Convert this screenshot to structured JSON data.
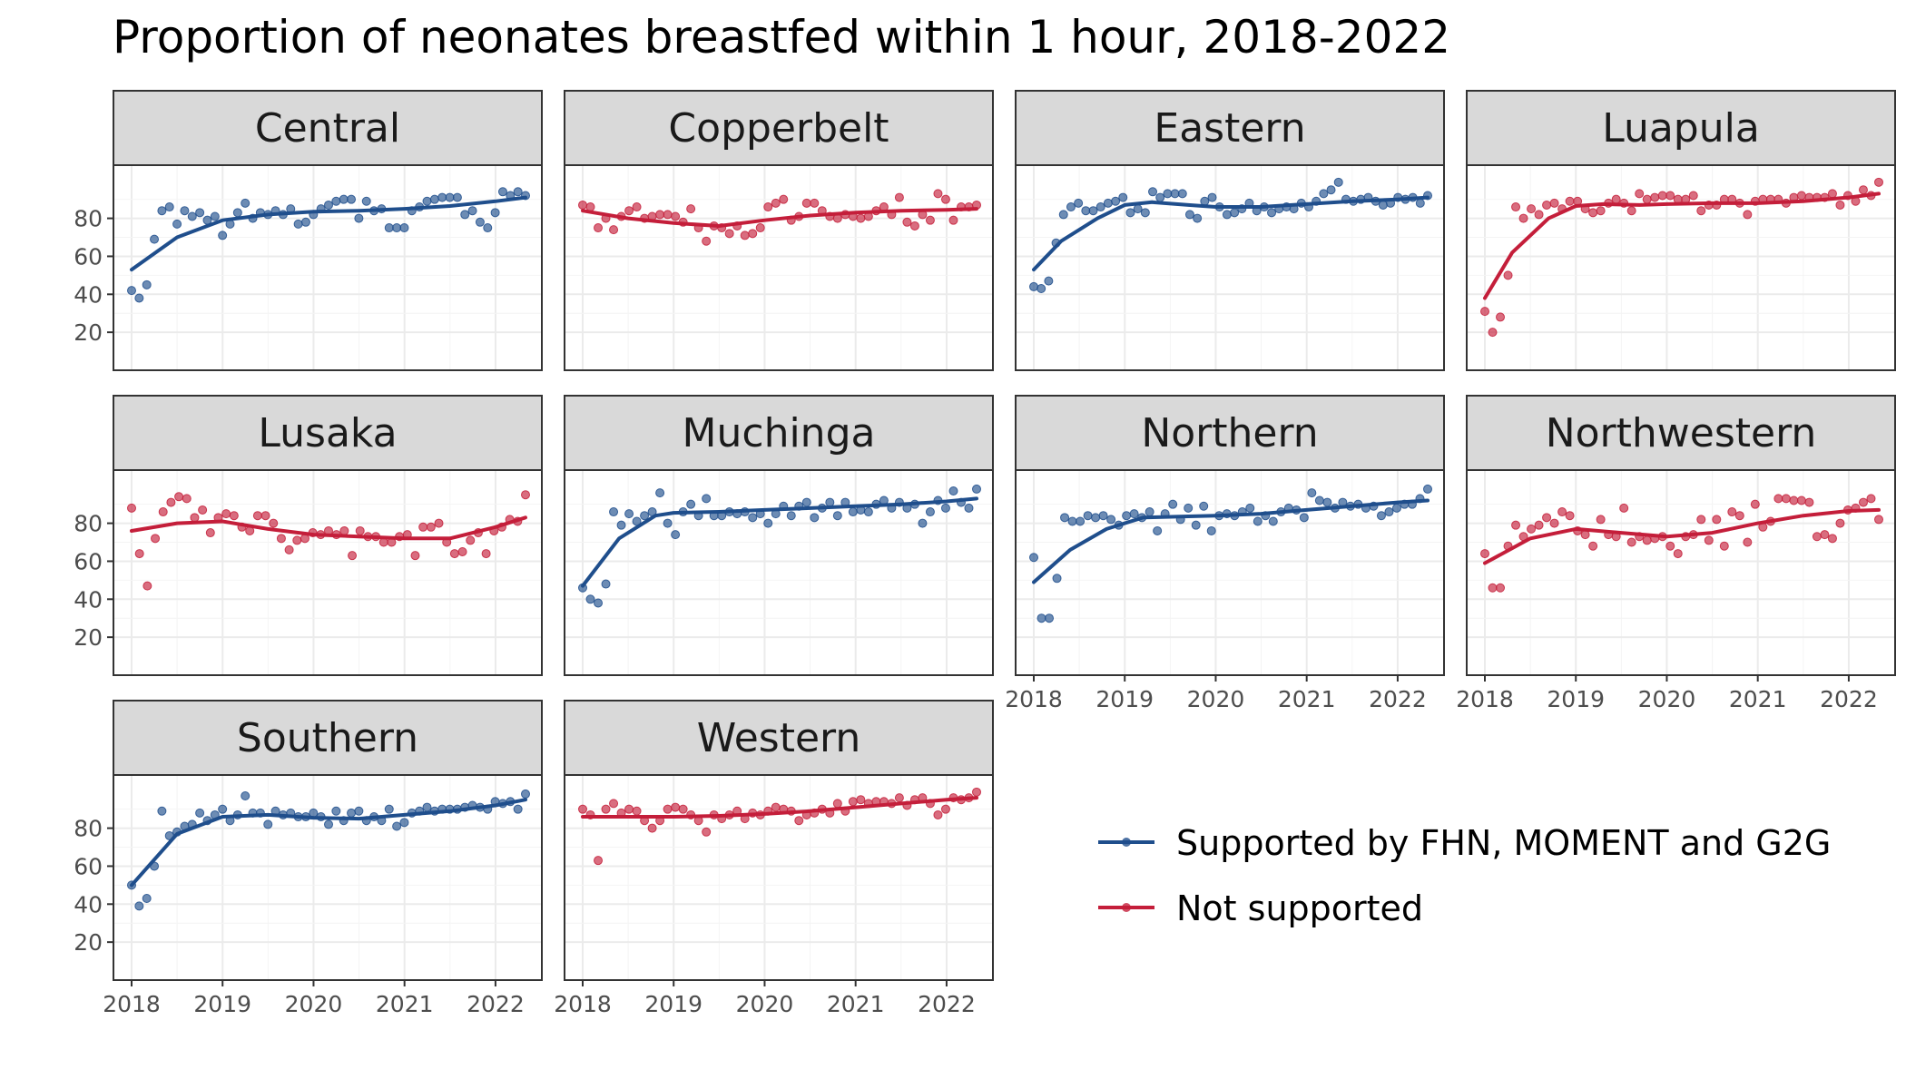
{
  "chart_data": {
    "type": "scatter",
    "title": "Proportion of neonates breastfed within 1 hour, 2018-2022",
    "x_ticks": [
      "2018",
      "2019",
      "2020",
      "2021",
      "2022"
    ],
    "x_range": [
      2018.0,
      2022.33
    ],
    "y_ticks": [
      "20",
      "40",
      "60",
      "80"
    ],
    "y_range": [
      0,
      108
    ],
    "colors": {
      "supported": "#1f4e8c",
      "not_supported": "#c41e3a"
    },
    "legend": {
      "position": "right",
      "items": [
        {
          "key": "supported",
          "label": "Supported by FHN, MOMENT and G2G"
        },
        {
          "key": "not_supported",
          "label": "Not supported"
        }
      ]
    },
    "panels": [
      {
        "name": "Central",
        "group": "supported",
        "points": [
          42,
          38,
          45,
          69,
          84,
          86,
          77,
          84,
          81,
          83,
          79,
          81,
          71,
          77,
          83,
          88,
          80,
          83,
          82,
          84,
          82,
          85,
          77,
          78,
          82,
          85,
          87,
          89,
          90,
          90,
          80,
          89,
          84,
          85,
          75,
          75,
          75,
          84,
          86,
          89,
          90,
          91,
          91,
          91,
          82,
          84,
          78,
          75,
          83,
          94,
          92,
          94,
          92
        ],
        "trend": [
          [
            2018,
            53
          ],
          [
            2018.5,
            70
          ],
          [
            2019,
            79
          ],
          [
            2019.5,
            82
          ],
          [
            2020,
            83.5
          ],
          [
            2020.5,
            84
          ],
          [
            2021,
            85
          ],
          [
            2021.5,
            86.5
          ],
          [
            2022,
            89
          ],
          [
            2022.33,
            91
          ]
        ]
      },
      {
        "name": "Copperbelt",
        "group": "not_supported",
        "points": [
          87,
          86,
          75,
          80,
          74,
          81,
          84,
          86,
          80,
          81,
          82,
          82,
          81,
          78,
          85,
          75,
          68,
          76,
          75,
          72,
          76,
          71,
          72,
          75,
          86,
          88,
          90,
          79,
          81,
          88,
          88,
          84,
          81,
          80,
          82,
          81,
          80,
          81,
          84,
          86,
          82,
          91,
          78,
          76,
          82,
          79,
          93,
          90,
          79,
          86,
          86,
          87
        ],
        "trend": [
          [
            2018,
            84
          ],
          [
            2018.5,
            80
          ],
          [
            2019,
            77.5
          ],
          [
            2019.5,
            76
          ],
          [
            2020,
            79
          ],
          [
            2020.5,
            81.5
          ],
          [
            2021,
            83
          ],
          [
            2021.5,
            84
          ],
          [
            2022,
            84.5
          ],
          [
            2022.33,
            85
          ]
        ]
      },
      {
        "name": "Eastern",
        "group": "supported",
        "points": [
          44,
          43,
          47,
          67,
          82,
          86,
          88,
          84,
          84,
          86,
          88,
          89,
          91,
          83,
          85,
          83,
          94,
          91,
          93,
          93,
          93,
          82,
          80,
          89,
          91,
          86,
          82,
          83,
          85,
          88,
          84,
          86,
          83,
          85,
          86,
          85,
          88,
          86,
          89,
          93,
          95,
          99,
          90,
          89,
          90,
          91,
          89,
          87,
          88,
          91,
          90,
          91,
          88,
          92
        ],
        "trend": [
          [
            2018,
            53
          ],
          [
            2018.3,
            68
          ],
          [
            2018.7,
            80
          ],
          [
            2019,
            87
          ],
          [
            2019.3,
            88.5
          ],
          [
            2019.7,
            87
          ],
          [
            2020,
            86
          ],
          [
            2020.5,
            86
          ],
          [
            2021,
            87.5
          ],
          [
            2021.5,
            89
          ],
          [
            2022,
            90
          ],
          [
            2022.33,
            91
          ]
        ]
      },
      {
        "name": "Luapula",
        "group": "not_supported",
        "points": [
          31,
          20,
          28,
          50,
          86,
          80,
          85,
          82,
          87,
          88,
          85,
          89,
          89,
          85,
          83,
          84,
          88,
          90,
          88,
          84,
          93,
          90,
          91,
          92,
          92,
          90,
          90,
          92,
          84,
          87,
          87,
          90,
          90,
          88,
          82,
          89,
          90,
          90,
          90,
          88,
          91,
          92,
          91,
          91,
          91,
          93,
          87,
          92,
          89,
          95,
          92,
          99
        ],
        "trend": [
          [
            2018,
            38
          ],
          [
            2018.3,
            62
          ],
          [
            2018.7,
            80
          ],
          [
            2019,
            86.5
          ],
          [
            2019.3,
            87.5
          ],
          [
            2019.7,
            87
          ],
          [
            2020,
            87.5
          ],
          [
            2020.5,
            88
          ],
          [
            2021,
            88
          ],
          [
            2021.5,
            89
          ],
          [
            2022,
            91
          ],
          [
            2022.33,
            93
          ]
        ]
      },
      {
        "name": "Lusaka",
        "group": "not_supported",
        "points": [
          88,
          64,
          47,
          72,
          86,
          91,
          94,
          93,
          83,
          87,
          75,
          83,
          85,
          84,
          78,
          76,
          84,
          84,
          80,
          72,
          66,
          71,
          72,
          75,
          74,
          76,
          74,
          76,
          63,
          76,
          73,
          73,
          70,
          70,
          73,
          74,
          63,
          78,
          78,
          80,
          70,
          64,
          65,
          71,
          75,
          64,
          76,
          78,
          82,
          81,
          95
        ],
        "trend": [
          [
            2018,
            76
          ],
          [
            2018.5,
            80
          ],
          [
            2019,
            81
          ],
          [
            2019.5,
            77
          ],
          [
            2020,
            74
          ],
          [
            2020.5,
            73
          ],
          [
            2021,
            72
          ],
          [
            2021.5,
            72
          ],
          [
            2022,
            78
          ],
          [
            2022.33,
            83
          ]
        ]
      },
      {
        "name": "Muchinga",
        "group": "supported",
        "points": [
          46,
          40,
          38,
          48,
          86,
          79,
          85,
          81,
          84,
          86,
          96,
          80,
          74,
          86,
          90,
          84,
          93,
          84,
          84,
          86,
          85,
          86,
          83,
          85,
          80,
          85,
          89,
          84,
          89,
          91,
          83,
          88,
          91,
          84,
          91,
          86,
          87,
          86,
          90,
          92,
          88,
          91,
          88,
          90,
          80,
          86,
          92,
          88,
          97,
          91,
          88,
          98
        ],
        "trend": [
          [
            2018,
            47
          ],
          [
            2018.4,
            72
          ],
          [
            2018.8,
            84
          ],
          [
            2019,
            85.5
          ],
          [
            2019.5,
            86
          ],
          [
            2020,
            87
          ],
          [
            2020.5,
            88
          ],
          [
            2021,
            89
          ],
          [
            2021.5,
            90
          ],
          [
            2022,
            91.5
          ],
          [
            2022.33,
            93
          ]
        ]
      },
      {
        "name": "Northern",
        "group": "supported",
        "points": [
          62,
          30,
          30,
          51,
          83,
          81,
          81,
          84,
          83,
          84,
          82,
          79,
          84,
          85,
          83,
          86,
          76,
          85,
          90,
          82,
          88,
          79,
          89,
          76,
          84,
          85,
          84,
          86,
          88,
          81,
          84,
          81,
          86,
          88,
          87,
          83,
          96,
          92,
          91,
          88,
          91,
          89,
          90,
          88,
          89,
          84,
          86,
          88,
          90,
          90,
          93,
          98
        ],
        "trend": [
          [
            2018,
            49
          ],
          [
            2018.4,
            66
          ],
          [
            2018.8,
            77
          ],
          [
            2019.2,
            83
          ],
          [
            2019.6,
            83.5
          ],
          [
            2020,
            84
          ],
          [
            2020.5,
            85
          ],
          [
            2021,
            87
          ],
          [
            2021.5,
            89
          ],
          [
            2022,
            91
          ],
          [
            2022.33,
            92
          ]
        ]
      },
      {
        "name": "Northwestern",
        "group": "not_supported",
        "points": [
          64,
          46,
          46,
          68,
          79,
          73,
          77,
          79,
          83,
          80,
          86,
          84,
          76,
          74,
          68,
          82,
          74,
          73,
          88,
          70,
          73,
          71,
          72,
          73,
          68,
          64,
          73,
          74,
          82,
          71,
          82,
          68,
          86,
          84,
          70,
          90,
          78,
          81,
          93,
          93,
          92,
          92,
          91,
          73,
          74,
          72,
          80,
          87,
          88,
          91,
          93,
          82
        ],
        "trend": [
          [
            2018,
            59
          ],
          [
            2018.5,
            72
          ],
          [
            2019,
            77
          ],
          [
            2019.5,
            75
          ],
          [
            2020,
            73
          ],
          [
            2020.5,
            75
          ],
          [
            2021,
            80
          ],
          [
            2021.5,
            84
          ],
          [
            2022,
            86.5
          ],
          [
            2022.33,
            87
          ]
        ]
      },
      {
        "name": "Southern",
        "group": "supported",
        "points": [
          50,
          39,
          43,
          60,
          89,
          76,
          78,
          81,
          82,
          88,
          84,
          87,
          90,
          84,
          87,
          97,
          88,
          88,
          82,
          89,
          87,
          88,
          86,
          86,
          88,
          86,
          82,
          89,
          84,
          88,
          89,
          84,
          86,
          84,
          90,
          81,
          83,
          88,
          89,
          91,
          89,
          90,
          90,
          90,
          91,
          92,
          91,
          90,
          94,
          93,
          94,
          90,
          98
        ],
        "trend": [
          [
            2018,
            50
          ],
          [
            2018.5,
            77
          ],
          [
            2019,
            86
          ],
          [
            2019.5,
            87
          ],
          [
            2020,
            85.5
          ],
          [
            2020.5,
            85
          ],
          [
            2021,
            87
          ],
          [
            2021.5,
            89
          ],
          [
            2022,
            92
          ],
          [
            2022.33,
            95
          ]
        ]
      },
      {
        "name": "Western",
        "group": "not_supported",
        "points": [
          90,
          87,
          63,
          90,
          93,
          88,
          90,
          89,
          84,
          80,
          84,
          90,
          91,
          90,
          87,
          84,
          78,
          87,
          85,
          87,
          89,
          85,
          88,
          87,
          89,
          91,
          90,
          89,
          84,
          87,
          88,
          90,
          88,
          93,
          89,
          94,
          95,
          93,
          94,
          94,
          93,
          96,
          92,
          95,
          96,
          93,
          87,
          90,
          96,
          95,
          96,
          99
        ],
        "trend": [
          [
            2018,
            86
          ],
          [
            2018.5,
            86
          ],
          [
            2019,
            86
          ],
          [
            2019.5,
            86.5
          ],
          [
            2020,
            87.5
          ],
          [
            2020.5,
            89
          ],
          [
            2021,
            91
          ],
          [
            2021.5,
            93
          ],
          [
            2022,
            95
          ],
          [
            2022.33,
            96
          ]
        ]
      }
    ]
  }
}
